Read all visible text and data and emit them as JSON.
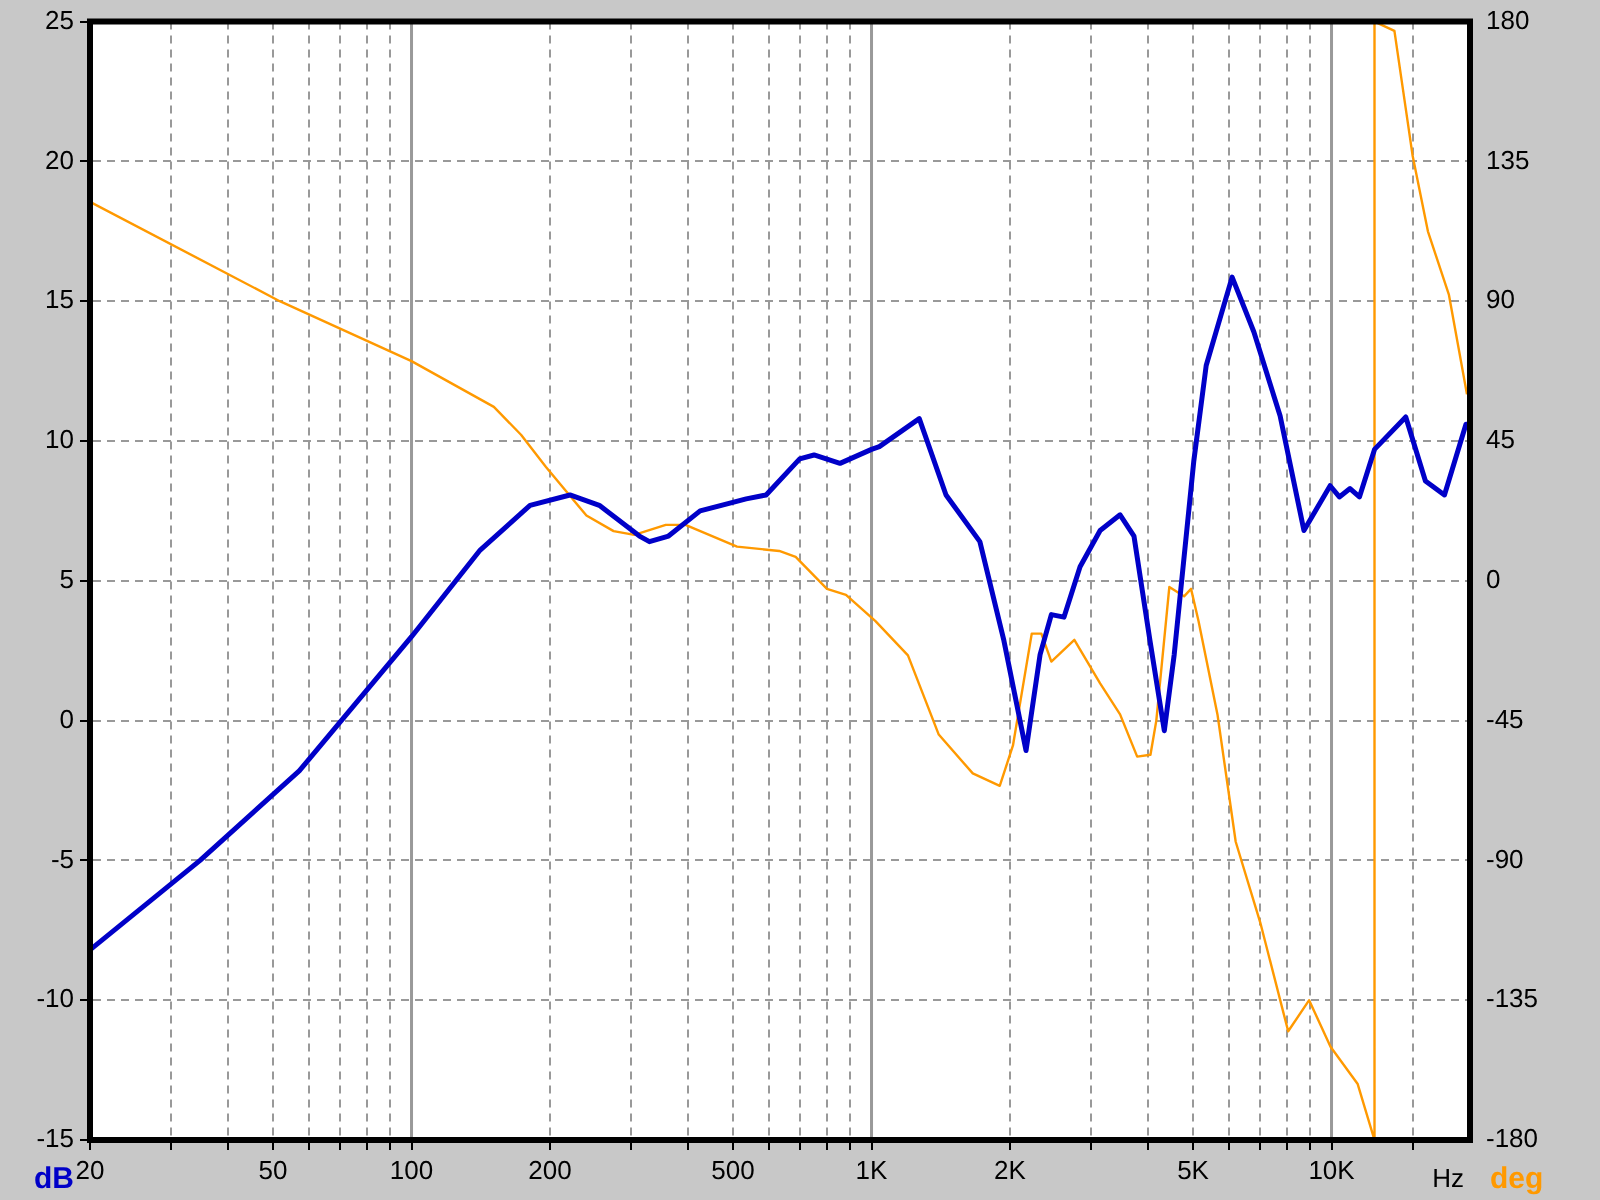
{
  "chart_data": {
    "type": "line",
    "xlabel": "Hz",
    "ylabel": "dB",
    "y2label": "deg",
    "log": "x",
    "grid": true,
    "legend": false,
    "marker": "none",
    "line_style": "solid",
    "xlim": [
      20,
      20000
    ],
    "xticks": [
      20,
      {
        "value": 30,
        "label": null
      },
      {
        "value": 40,
        "label": null
      },
      50,
      {
        "value": 60,
        "label": null
      },
      {
        "value": 70,
        "label": null
      },
      {
        "value": 80,
        "label": null
      },
      {
        "value": 90,
        "label": null
      },
      100,
      200,
      {
        "value": 300,
        "label": null
      },
      {
        "value": 400,
        "label": null
      },
      500,
      {
        "value": 600,
        "label": null
      },
      {
        "value": 700,
        "label": null
      },
      {
        "value": 800,
        "label": null
      },
      {
        "value": 900,
        "label": null
      },
      {
        "value": 1000,
        "label": "1K"
      },
      {
        "value": 2000,
        "label": "2K"
      },
      {
        "value": 3000,
        "label": null
      },
      {
        "value": 4000,
        "label": null
      },
      {
        "value": 5000,
        "label": "5K"
      },
      {
        "value": 6000,
        "label": null
      },
      {
        "value": 7000,
        "label": null
      },
      {
        "value": 8000,
        "label": null
      },
      {
        "value": 9000,
        "label": null
      },
      {
        "value": 10000,
        "label": "10K"
      },
      {
        "value": 15000,
        "label": null
      }
    ],
    "ylim": [
      -15,
      25
    ],
    "yticks": [
      -15,
      -10,
      -5,
      0,
      5,
      10,
      15,
      20,
      25
    ],
    "y2lim": [
      -180,
      180
    ],
    "y2ticks": [
      -180,
      -135,
      -90,
      -45,
      0,
      45,
      90,
      135,
      180
    ],
    "series": [
      {
        "color": "#0000c8",
        "x": [
          20,
          34.7,
          57,
          100,
          141,
          181,
          221,
          256,
          313,
          329,
          362,
          424,
          534,
          590,
          698,
          750,
          854,
          1000,
          1040,
          1270,
          1452,
          1720,
          1940,
          2167,
          2325,
          2460,
          2620,
          2840,
          3140,
          3470,
          3720,
          4030,
          4330,
          4550,
          5020,
          5340,
          6080,
          6780,
          7730,
          8710,
          9930,
          10400,
          10970,
          11500,
          12400,
          14500,
          16000,
          17600,
          19600,
          20000
        ],
        "values": [
          -8.2,
          -5,
          -1.8,
          3,
          6.1,
          7.7,
          8.07,
          7.7,
          6.6,
          6.4,
          6.6,
          7.5,
          7.93,
          8.07,
          9.36,
          9.5,
          9.2,
          9.7,
          9.8,
          10.8,
          8.07,
          6.4,
          2.86,
          -1.07,
          2.36,
          3.79,
          3.7,
          5.5,
          6.8,
          7.36,
          6.6,
          2.86,
          -0.36,
          2.36,
          9.3,
          12.7,
          15.86,
          13.9,
          10.9,
          6.8,
          8.4,
          8,
          8.3,
          8,
          9.7,
          10.86,
          8.57,
          8.07,
          10.6,
          10.6
        ]
      },
      {
        "color": "#ff9900",
        "axis": "y2",
        "x": [
          20,
          51.7,
          100,
          151,
          173,
          196,
          240,
          275,
          305,
          357,
          394,
          510,
          630,
          684,
          800,
          880,
          1020,
          1200,
          1400,
          1660,
          1900,
          2030,
          2230,
          2340,
          2460,
          2760,
          3140,
          3470,
          3780,
          4040,
          4160,
          4440,
          4780,
          4950,
          5140,
          5650,
          6190,
          7000,
          8050,
          8940,
          9950,
          11400,
          12400,
          12400,
          13700,
          15000,
          16200,
          18000,
          19700
        ],
        "values": [
          122,
          90,
          70.7,
          56,
          47,
          36.6,
          21,
          16,
          14.8,
          18,
          18,
          11,
          9.6,
          7.7,
          -2.6,
          -4.5,
          -13,
          -24,
          -49.5,
          -62,
          -66,
          -53,
          -17,
          -17,
          -26,
          -19,
          -33,
          -43,
          -56.6,
          -56,
          -45,
          -2,
          -5,
          -2.6,
          -13,
          -43,
          -84,
          -110,
          -145,
          -135,
          -150,
          -162,
          -180,
          180,
          177,
          137,
          112.5,
          92,
          60
        ]
      }
    ]
  }
}
